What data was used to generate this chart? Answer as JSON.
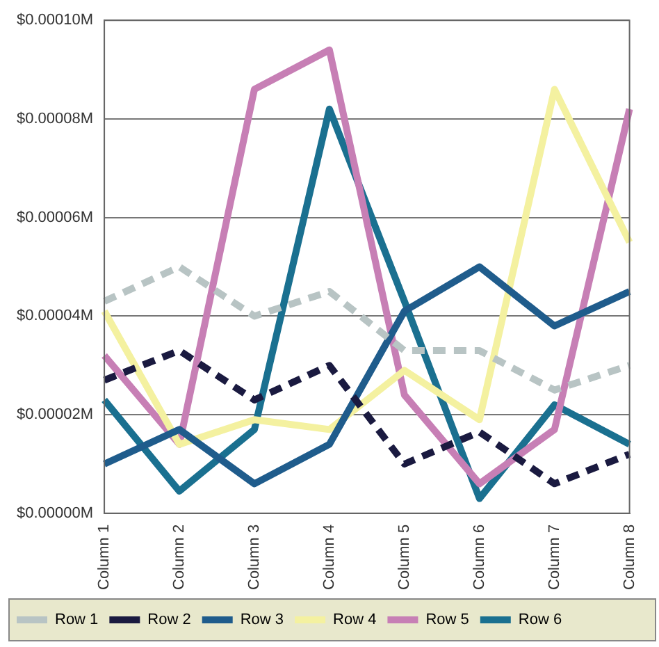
{
  "chart_data": {
    "type": "line",
    "categories": [
      "Column 1",
      "Column 2",
      "Column 3",
      "Column 4",
      "Column 5",
      "Column 6",
      "Column 7",
      "Column 8"
    ],
    "series": [
      {
        "name": "Row 1",
        "color": "#b8c4c4",
        "line_style": "dashed",
        "values": [
          4.3e-05,
          5e-05,
          4e-05,
          4.5e-05,
          3.3e-05,
          3.3e-05,
          2.5e-05,
          3e-05
        ]
      },
      {
        "name": "Row 2",
        "color": "#1a1a40",
        "line_style": "dashed",
        "values": [
          2.7e-05,
          3.3e-05,
          2.3e-05,
          3e-05,
          1e-05,
          1.65e-05,
          6e-06,
          1.2e-05
        ]
      },
      {
        "name": "Row 3",
        "color": "#1f5c8c",
        "values": [
          1e-05,
          1.7e-05,
          6e-06,
          1.4e-05,
          4.1e-05,
          5e-05,
          3.8e-05,
          4.5e-05
        ]
      },
      {
        "name": "Row 4",
        "color": "#f4f1a0",
        "values": [
          4.1e-05,
          1.4e-05,
          1.9e-05,
          1.7e-05,
          2.9e-05,
          1.9e-05,
          8.6e-05,
          5.5e-05
        ]
      },
      {
        "name": "Row 5",
        "color": "#c77fb5",
        "values": [
          3.2e-05,
          1.4e-05,
          8.6e-05,
          9.4e-05,
          2.4e-05,
          6e-06,
          1.7e-05,
          8.2e-05
        ]
      },
      {
        "name": "Row 6",
        "color": "#1a7090",
        "values": [
          2.3e-05,
          4.5e-06,
          1.7e-05,
          8.2e-05,
          4.3e-05,
          3e-06,
          2.2e-05,
          1.4e-05
        ]
      }
    ],
    "ylim": [
      0,
      0.0001
    ],
    "yticks": [
      {
        "value": 0,
        "label": "$0.00000M"
      },
      {
        "value": 2e-05,
        "label": "$0.00002M"
      },
      {
        "value": 4e-05,
        "label": "$0.00004M"
      },
      {
        "value": 6e-05,
        "label": "$0.00006M"
      },
      {
        "value": 8e-05,
        "label": "$0.00008M"
      },
      {
        "value": 0.0001,
        "label": "$0.00010M"
      }
    ],
    "grid": "y",
    "legend": "bottom",
    "marker": "none"
  }
}
